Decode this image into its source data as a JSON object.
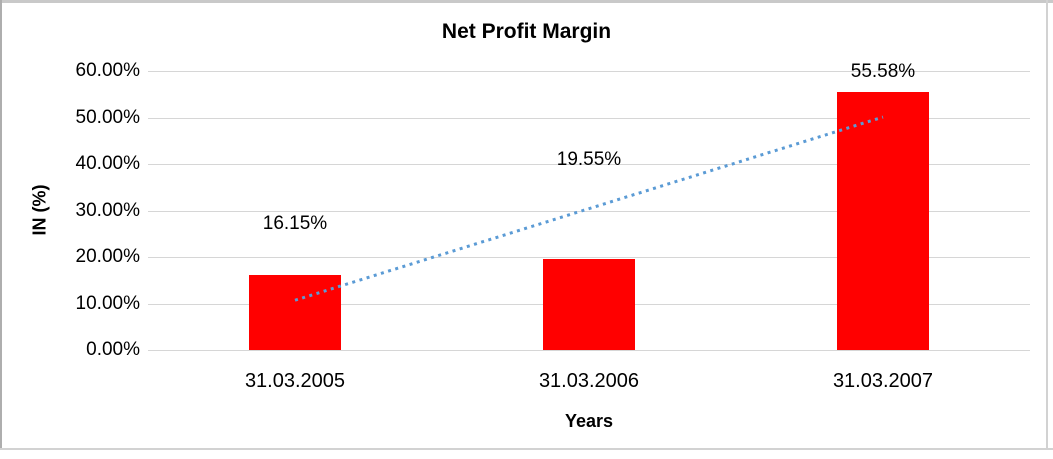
{
  "chart_data": {
    "type": "bar",
    "title": "Net Profit Margin",
    "xlabel": "Years",
    "ylabel": "IN (%)",
    "categories": [
      "31.03.2005",
      "31.03.2006",
      "31.03.2007"
    ],
    "values": [
      16.15,
      19.55,
      55.58
    ],
    "data_labels": [
      "16.15%",
      "19.55%",
      "55.58%"
    ],
    "label_center_pct": [
      27.2,
      40.8,
      59.7
    ],
    "ylim": [
      0,
      60
    ],
    "y_tick_values": [
      0,
      10,
      20,
      30,
      40,
      50,
      60
    ],
    "y_tick_labels": [
      "0.00%",
      "10.00%",
      "20.00%",
      "30.00%",
      "40.00%",
      "50.00%",
      "60.00%"
    ],
    "grid": true,
    "legend": false,
    "bar_color": "#ff0000",
    "gridline_color": "#d6d6d6",
    "trendline": {
      "type": "linear",
      "style": "dotted",
      "color": "#5b9bd5",
      "start_pct": 10.7,
      "end_pct": 50.1
    }
  }
}
